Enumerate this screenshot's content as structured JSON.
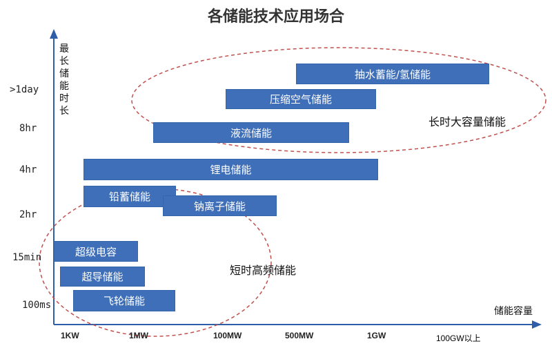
{
  "title": "各储能技术应用场合",
  "y_axis_label": "最长储能时长",
  "x_axis_label": "储能容量",
  "y_ticks": [
    ">1day",
    "8hr",
    "4hr",
    "2hr",
    "15min",
    "100ms"
  ],
  "x_ticks": [
    "1KW",
    "1MW",
    "100MW",
    "500MW",
    "1GW"
  ],
  "x_extra_label": "100GW以上",
  "technologies": [
    {
      "name": "抽水蓄能/氢储能"
    },
    {
      "name": "压缩空气储能"
    },
    {
      "name": "液流储能"
    },
    {
      "name": "锂电储能"
    },
    {
      "name": "铅蓄储能"
    },
    {
      "name": "钠离子储能"
    },
    {
      "name": "超级电容"
    },
    {
      "name": "超导储能"
    },
    {
      "name": "飞轮储能"
    }
  ],
  "groups": [
    {
      "label": "长时大容量储能"
    },
    {
      "label": "短时高频储能"
    }
  ],
  "colors": {
    "bar": "#3f6fb8",
    "ellipse": "#c0504d",
    "axis": "#2f5ea8"
  }
}
